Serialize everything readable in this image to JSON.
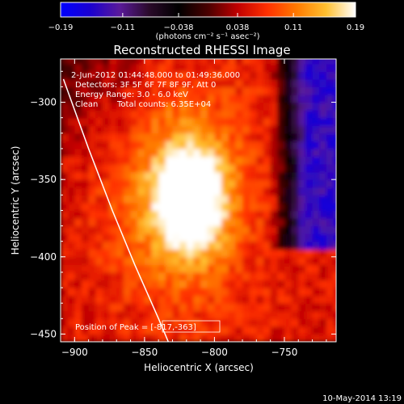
{
  "chart_data": {
    "type": "heatmap",
    "title": "Reconstructed RHESSI Image",
    "xlabel": "Heliocentric X (arcsec)",
    "ylabel": "Heliocentric Y (arcsec)",
    "xlim": [
      -910,
      -713
    ],
    "ylim": [
      -455,
      -272
    ],
    "x_ticks": [
      -900,
      -850,
      -800,
      -750
    ],
    "y_ticks": [
      -300,
      -350,
      -400,
      -450
    ],
    "x_tick_labels": [
      "−900",
      "−850",
      "−800",
      "−750"
    ],
    "y_tick_labels": [
      "−300",
      "−350",
      "−400",
      "−450"
    ],
    "colorbar": {
      "min": -0.19,
      "max": 0.19,
      "ticks": [
        -0.19,
        -0.11,
        -0.038,
        0.038,
        0.11,
        0.19
      ],
      "tick_labels": [
        "−0.19",
        "−0.11",
        "−0.038",
        "0.038",
        "0.11",
        "0.19"
      ],
      "unit_label": "(photons cm⁻² s⁻¹ asec⁻²)",
      "colors": [
        "#0000ff",
        "#1a00d0",
        "#5a1a9a",
        "#2a0a2a",
        "#000000",
        "#4a0000",
        "#c00000",
        "#ff3000",
        "#ff7a00",
        "#ffc030",
        "#ffffff"
      ]
    },
    "peak": {
      "x": -817,
      "y": -363,
      "value": 0.19
    },
    "limb_line": [
      [
        -908,
        -285
      ],
      [
        -890,
        -330
      ],
      [
        -873,
        -370
      ],
      [
        -857,
        -405
      ],
      [
        -840,
        -440
      ],
      [
        -833,
        -455
      ]
    ],
    "info": {
      "time_range": "2-Jun-2012 01:44:48.000 to 01:49:36.000",
      "detectors": "Detectors: 3F 5F 6F 7F 8F 9F, Att 0",
      "energy": "Energy Range: 3.0 - 6.0 keV",
      "method": "Clean",
      "counts": "Total counts: 6.35E+04",
      "peak_label": "Position of Peak = [-817,-363]"
    },
    "timestamp": "10-May-2014 13:19"
  }
}
